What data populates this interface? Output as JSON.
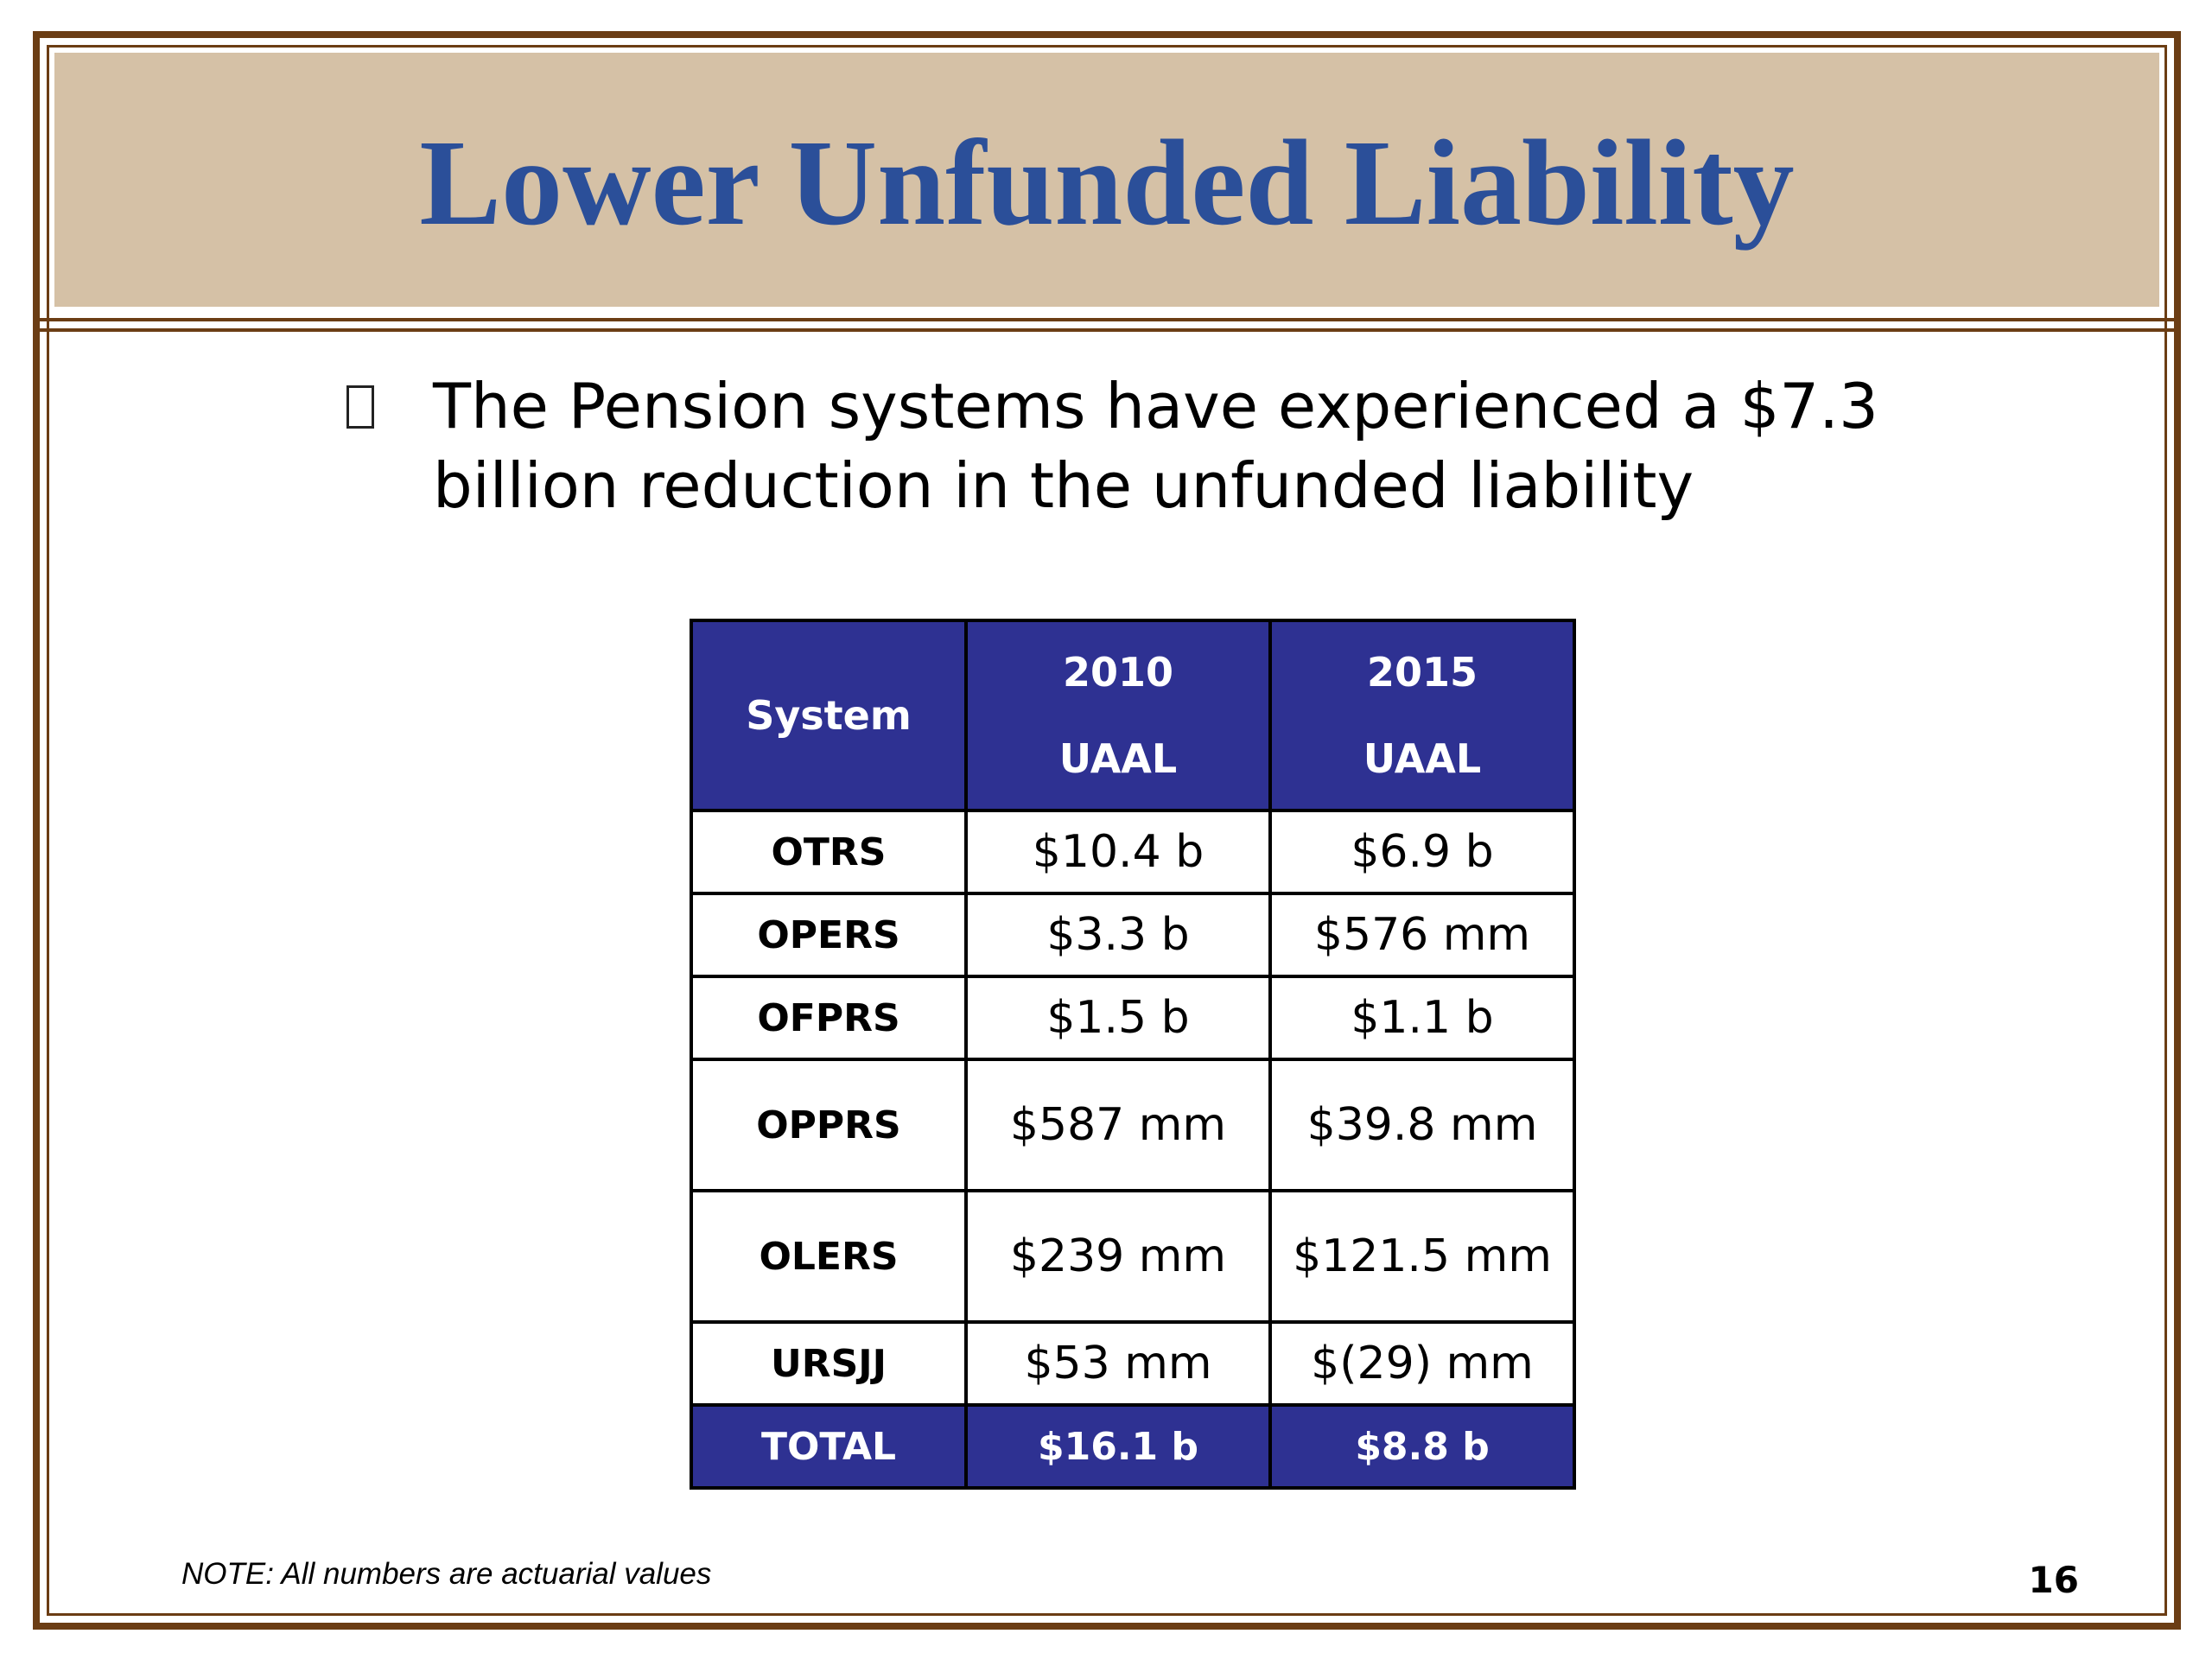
{
  "slide": {
    "title": "Lower Unfunded Liability",
    "bullet": "The Pension systems have experienced a $7.3 billion reduction in the unfunded liability",
    "note": "NOTE: All numbers are actuarial values",
    "page_number": "16"
  },
  "table": {
    "headers": {
      "system": "System",
      "col_2010_year": "2010",
      "col_2010_label": "UAAL",
      "col_2015_year": "2015",
      "col_2015_label": "UAAL"
    },
    "rows": [
      {
        "system": "OTRS",
        "uaal_2010": "$10.4 b",
        "uaal_2015": "$6.9 b"
      },
      {
        "system": "OPERS",
        "uaal_2010": "$3.3 b",
        "uaal_2015": "$576 mm"
      },
      {
        "system": "OFPRS",
        "uaal_2010": "$1.5 b",
        "uaal_2015": "$1.1 b"
      },
      {
        "system": "OPPRS",
        "uaal_2010": "$587 mm",
        "uaal_2015": "$39.8 mm"
      },
      {
        "system": "OLERS",
        "uaal_2010": "$239 mm",
        "uaal_2015": "$121.5 mm"
      },
      {
        "system": "URSJJ",
        "uaal_2010": "$53 mm",
        "uaal_2015": "$(29) mm"
      }
    ],
    "total": {
      "system": "TOTAL",
      "uaal_2010": "$16.1 b",
      "uaal_2015": "$8.8 b"
    }
  },
  "colors": {
    "title_text": "#2b4f99",
    "title_band": "#d5c1a6",
    "frame_border": "#6b3d14",
    "table_header_fill": "#2e3192"
  }
}
